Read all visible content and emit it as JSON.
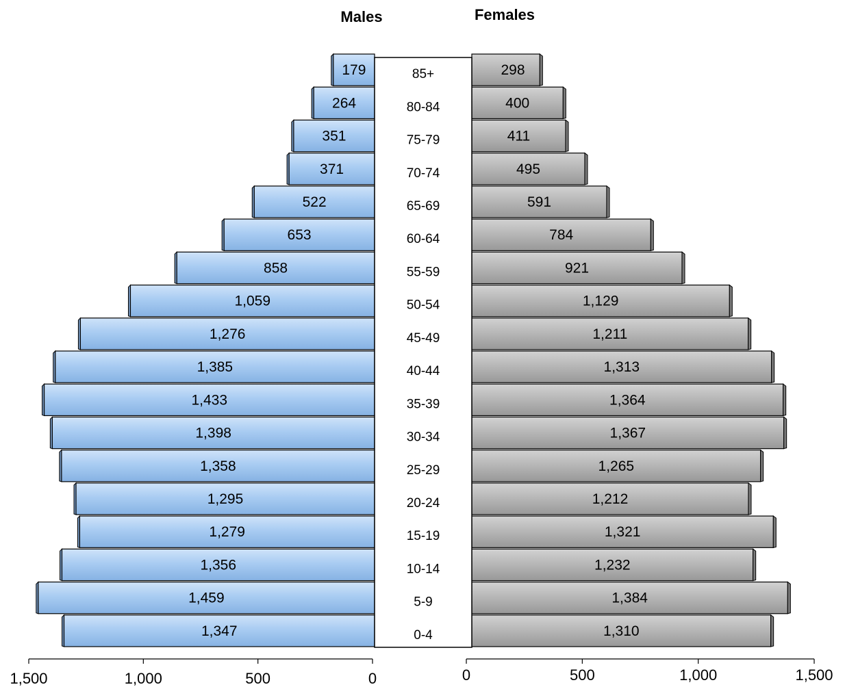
{
  "chart_data": {
    "type": "bar",
    "subtype": "population-pyramid",
    "categories": [
      "0-4",
      "5-9",
      "10-14",
      "15-19",
      "20-24",
      "25-29",
      "30-34",
      "35-39",
      "40-44",
      "45-49",
      "50-54",
      "55-59",
      "60-64",
      "65-69",
      "70-74",
      "75-79",
      "80-84",
      "85+"
    ],
    "series": [
      {
        "name": "Males",
        "values": [
          1347,
          1459,
          1356,
          1279,
          1295,
          1358,
          1398,
          1433,
          1385,
          1276,
          1059,
          858,
          653,
          522,
          371,
          351,
          264,
          179
        ],
        "labels": [
          "1,347",
          "1,459",
          "1,356",
          "1,279",
          "1,295",
          "1,358",
          "1,398",
          "1,433",
          "1,385",
          "1,276",
          "1,059",
          "858",
          "653",
          "522",
          "371",
          "351",
          "264",
          "179"
        ],
        "color": "#a4c9f1",
        "side": "left"
      },
      {
        "name": "Females",
        "values": [
          1310,
          1384,
          1232,
          1321,
          1212,
          1265,
          1367,
          1364,
          1313,
          1211,
          1129,
          921,
          784,
          591,
          495,
          411,
          400,
          298
        ],
        "labels": [
          "1,310",
          "1,384",
          "1,232",
          "1,321",
          "1,212",
          "1,265",
          "1,367",
          "1,364",
          "1,313",
          "1,211",
          "1,129",
          "921",
          "784",
          "591",
          "495",
          "411",
          "400",
          "298"
        ],
        "color": "#b4b4b4",
        "side": "right"
      }
    ],
    "xlim": [
      0,
      1500
    ],
    "xticks": [
      0,
      500,
      1000,
      1500
    ],
    "xtick_labels_left": [
      "1,500",
      "1,000",
      "500",
      "0"
    ],
    "xtick_labels_right": [
      "0",
      "500",
      "1,000",
      "1,500"
    ],
    "grid": false,
    "legend": "none"
  }
}
